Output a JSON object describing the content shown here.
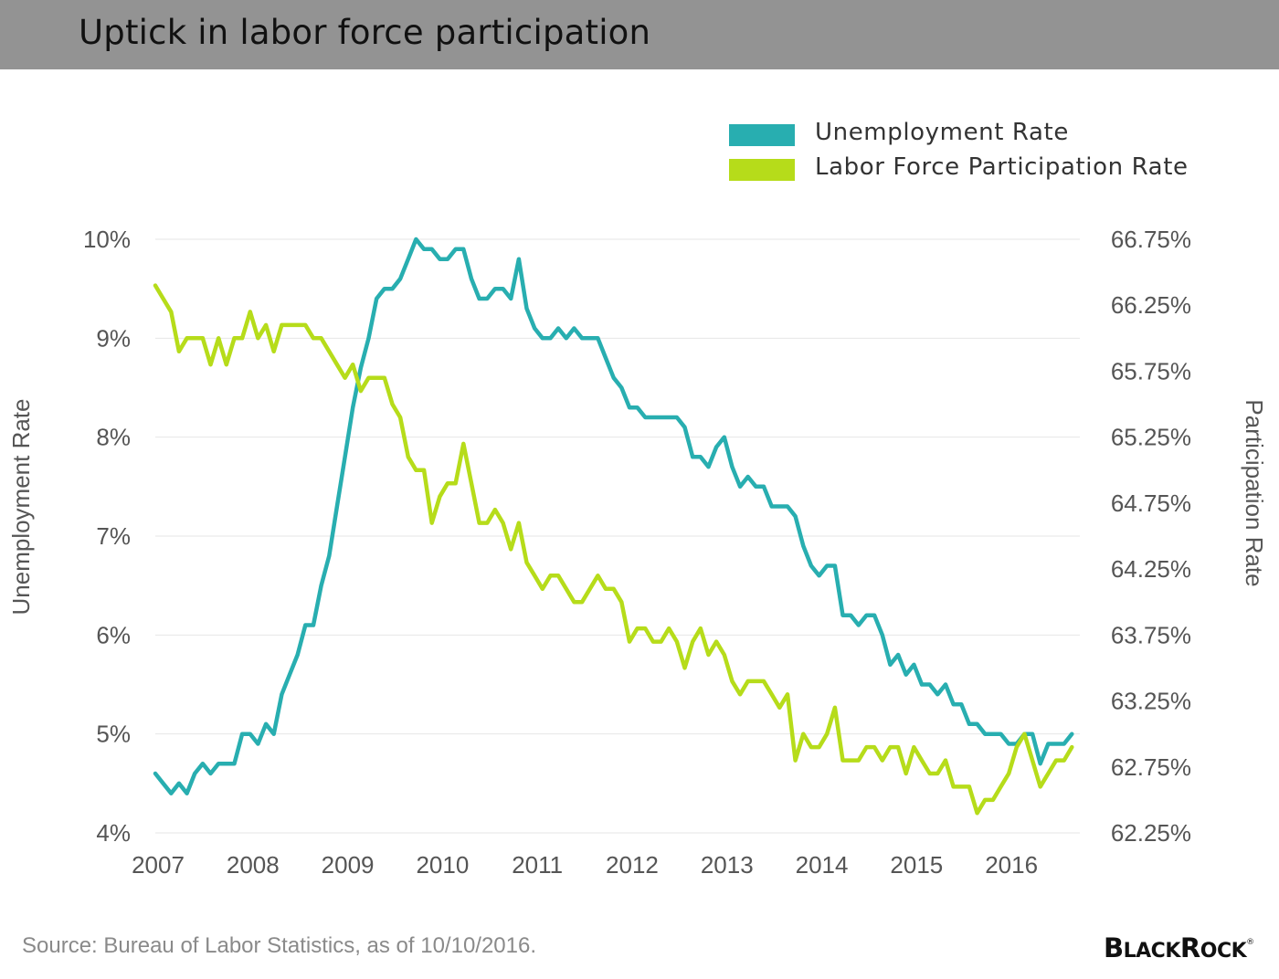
{
  "header": {
    "title": "Uptick in labor force participation"
  },
  "legend": [
    {
      "label": "Unemployment Rate",
      "color": "#28aeb0"
    },
    {
      "label": "Labor Force Participation Rate",
      "color": "#b6dc1a"
    }
  ],
  "footer": {
    "source": "Source: Bureau of Labor Statistics, as of 10/10/2016.",
    "logo": "BlackRock"
  },
  "chart_data": {
    "type": "line",
    "title": "Uptick in labor force participation",
    "xlabel": "",
    "ylabel": "Unemployment Rate",
    "y2label": "Participation Rate",
    "x_ticks": [
      "2007",
      "2008",
      "2009",
      "2010",
      "2011",
      "2012",
      "2013",
      "2014",
      "2015",
      "2016"
    ],
    "x_range": [
      2007.0,
      2016.75
    ],
    "y_left": {
      "ticks": [
        "4%",
        "5%",
        "6%",
        "7%",
        "8%",
        "9%",
        "10%"
      ],
      "tick_values": [
        4,
        5,
        6,
        7,
        8,
        9,
        10
      ],
      "range": [
        4,
        10
      ]
    },
    "y_right": {
      "ticks": [
        "62.25%",
        "62.75%",
        "63.25%",
        "63.75%",
        "64.25%",
        "64.75%",
        "65.25%",
        "65.75%",
        "66.25%",
        "66.75%"
      ],
      "tick_values": [
        62.25,
        62.75,
        63.25,
        63.75,
        64.25,
        64.75,
        65.25,
        65.75,
        66.25,
        66.75
      ],
      "range": [
        62.25,
        66.75
      ]
    },
    "grid": true,
    "legend_position": "top-right",
    "series": [
      {
        "name": "Unemployment Rate",
        "axis": "left",
        "color": "#28aeb0",
        "start": 2007.0,
        "step": 0.083333,
        "values": [
          4.6,
          4.5,
          4.4,
          4.5,
          4.4,
          4.6,
          4.7,
          4.6,
          4.7,
          4.7,
          4.7,
          5.0,
          5.0,
          4.9,
          5.1,
          5.0,
          5.4,
          5.6,
          5.8,
          6.1,
          6.1,
          6.5,
          6.8,
          7.3,
          7.8,
          8.3,
          8.7,
          9.0,
          9.4,
          9.5,
          9.5,
          9.6,
          9.8,
          10.0,
          9.9,
          9.9,
          9.8,
          9.8,
          9.9,
          9.9,
          9.6,
          9.4,
          9.4,
          9.5,
          9.5,
          9.4,
          9.8,
          9.3,
          9.1,
          9.0,
          9.0,
          9.1,
          9.0,
          9.1,
          9.0,
          9.0,
          9.0,
          8.8,
          8.6,
          8.5,
          8.3,
          8.3,
          8.2,
          8.2,
          8.2,
          8.2,
          8.2,
          8.1,
          7.8,
          7.8,
          7.7,
          7.9,
          8.0,
          7.7,
          7.5,
          7.6,
          7.5,
          7.5,
          7.3,
          7.3,
          7.3,
          7.2,
          6.9,
          6.7,
          6.6,
          6.7,
          6.7,
          6.2,
          6.2,
          6.1,
          6.2,
          6.2,
          6.0,
          5.7,
          5.8,
          5.6,
          5.7,
          5.5,
          5.5,
          5.4,
          5.5,
          5.3,
          5.3,
          5.1,
          5.1,
          5.0,
          5.0,
          5.0,
          4.9,
          4.9,
          5.0,
          5.0,
          4.7,
          4.9,
          4.9,
          4.9,
          5.0
        ]
      },
      {
        "name": "Labor Force Participation Rate",
        "axis": "right",
        "color": "#b6dc1a",
        "start": 2007.0,
        "step": 0.083333,
        "values": [
          66.4,
          66.3,
          66.2,
          65.9,
          66.0,
          66.0,
          66.0,
          65.8,
          66.0,
          65.8,
          66.0,
          66.0,
          66.2,
          66.0,
          66.1,
          65.9,
          66.1,
          66.1,
          66.1,
          66.1,
          66.0,
          66.0,
          65.9,
          65.8,
          65.7,
          65.8,
          65.6,
          65.7,
          65.7,
          65.7,
          65.5,
          65.4,
          65.1,
          65.0,
          65.0,
          64.6,
          64.8,
          64.9,
          64.9,
          65.2,
          64.9,
          64.6,
          64.6,
          64.7,
          64.6,
          64.4,
          64.6,
          64.3,
          64.2,
          64.1,
          64.2,
          64.2,
          64.1,
          64.0,
          64.0,
          64.1,
          64.2,
          64.1,
          64.1,
          64.0,
          63.7,
          63.8,
          63.8,
          63.7,
          63.7,
          63.8,
          63.7,
          63.5,
          63.7,
          63.8,
          63.6,
          63.7,
          63.6,
          63.4,
          63.3,
          63.4,
          63.4,
          63.4,
          63.3,
          63.2,
          63.3,
          62.8,
          63.0,
          62.9,
          62.9,
          63.0,
          63.2,
          62.8,
          62.8,
          62.8,
          62.9,
          62.9,
          62.8,
          62.9,
          62.9,
          62.7,
          62.9,
          62.8,
          62.7,
          62.7,
          62.8,
          62.6,
          62.6,
          62.6,
          62.4,
          62.5,
          62.5,
          62.6,
          62.7,
          62.9,
          63.0,
          62.8,
          62.6,
          62.7,
          62.8,
          62.8,
          62.9
        ]
      }
    ]
  }
}
